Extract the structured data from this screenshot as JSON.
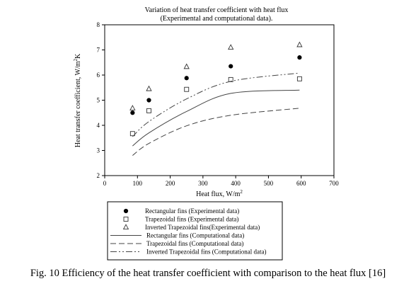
{
  "chart_data": {
    "type": "scatter",
    "title": "Variation of heat transfer coefficient with heat flux",
    "subtitle": "(Experimental and computational data).",
    "xlabel": "Heat flux, W/m",
    "xlabel_sup": "2",
    "ylabel": "Heat transfer coefficient, W/m",
    "ylabel_sup": "2",
    "ylabel_suffix": "K",
    "xlim": [
      0,
      700
    ],
    "ylim": [
      2,
      8
    ],
    "xticks": [
      "0",
      "100",
      "200",
      "300",
      "400",
      "500",
      "600",
      "700"
    ],
    "yticks": [
      "2",
      "3",
      "4",
      "5",
      "6",
      "7",
      "8"
    ],
    "grid": false,
    "legend_position": "below",
    "series": [
      {
        "name": "Rectangular fins (Experimental data)",
        "kind": "markers",
        "marker": "filled-circle",
        "x": [
          85,
          135,
          250,
          385,
          595
        ],
        "y": [
          4.5,
          5.0,
          5.88,
          6.35,
          6.7
        ]
      },
      {
        "name": "Trapezoidal fins (Experimental data)",
        "kind": "markers",
        "marker": "open-square",
        "x": [
          85,
          135,
          250,
          385,
          595
        ],
        "y": [
          3.67,
          4.58,
          5.43,
          5.82,
          5.85
        ]
      },
      {
        "name": "Inverted Trapezoidal fins(Experimental data)",
        "kind": "markers",
        "marker": "open-triangle",
        "x": [
          85,
          135,
          250,
          385,
          595
        ],
        "y": [
          4.68,
          5.45,
          6.33,
          7.1,
          7.2
        ]
      },
      {
        "name": "Rectangular fins (Computational data)",
        "kind": "line",
        "dash": "solid",
        "x": [
          85,
          135,
          250,
          385,
          595
        ],
        "y": [
          3.18,
          3.7,
          4.55,
          5.27,
          5.4
        ]
      },
      {
        "name": "Trapezoidal fins (Computational data)",
        "kind": "line",
        "dash": "dashed",
        "x": [
          85,
          135,
          250,
          385,
          595
        ],
        "y": [
          2.8,
          3.28,
          3.98,
          4.4,
          4.68
        ]
      },
      {
        "name": "Inverted Trapezoidal fins (Computational data)",
        "kind": "line",
        "dash": "dashdotdot",
        "x": [
          85,
          135,
          250,
          385,
          595
        ],
        "y": [
          3.55,
          4.15,
          5.05,
          5.75,
          6.08
        ]
      }
    ]
  },
  "caption": "Fig. 10 Efficiency of the heat transfer coefficient with comparison to the heat flux [16]"
}
